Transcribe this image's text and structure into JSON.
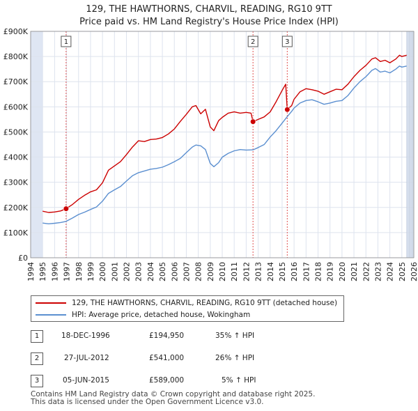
{
  "title": {
    "line1": "129, THE HAWTHORNS, CHARVIL, READING, RG10 9TT",
    "line2": "Price paid vs. HM Land Registry's House Price Index (HPI)"
  },
  "legend": {
    "property_label": "129, THE HAWTHORNS, CHARVIL, READING, RG10 9TT (detached house)",
    "hpi_label": "HPI: Average price, detached house, Wokingham"
  },
  "colors": {
    "property": "#cc0000",
    "hpi": "#5b8fd0",
    "grid": "#dde3ee",
    "shade": "#dfe6f3",
    "marker_line": "#e05050"
  },
  "chart_data": {
    "type": "line",
    "xlim": [
      1994,
      2026
    ],
    "ylim": [
      0,
      900000
    ],
    "x_ticks": [
      1994,
      1995,
      1996,
      1997,
      1998,
      1999,
      2000,
      2001,
      2002,
      2003,
      2004,
      2005,
      2006,
      2007,
      2008,
      2009,
      2010,
      2011,
      2012,
      2013,
      2014,
      2015,
      2016,
      2017,
      2018,
      2019,
      2020,
      2021,
      2022,
      2023,
      2024,
      2025,
      2026
    ],
    "y_ticks": [
      {
        "value": 0,
        "label": "£0"
      },
      {
        "value": 100000,
        "label": "£100K"
      },
      {
        "value": 200000,
        "label": "£200K"
      },
      {
        "value": 300000,
        "label": "£300K"
      },
      {
        "value": 400000,
        "label": "£400K"
      },
      {
        "value": 500000,
        "label": "£500K"
      },
      {
        "value": 600000,
        "label": "£600K"
      },
      {
        "value": 700000,
        "label": "£700K"
      },
      {
        "value": 800000,
        "label": "£800K"
      },
      {
        "value": 900000,
        "label": "£900K"
      }
    ],
    "data_start_x": 1995,
    "data_end_x": 2025.4,
    "series": [
      {
        "name": "129, THE HAWTHORNS, CHARVIL, READING, RG10 9TT (detached house)",
        "color": "#cc0000",
        "points": [
          [
            1995.0,
            185000
          ],
          [
            1995.5,
            180000
          ],
          [
            1996.0,
            182000
          ],
          [
            1996.5,
            186000
          ],
          [
            1996.96,
            194950
          ],
          [
            1997.5,
            212000
          ],
          [
            1998.0,
            232000
          ],
          [
            1998.5,
            248000
          ],
          [
            1999.0,
            262000
          ],
          [
            1999.5,
            270000
          ],
          [
            2000.0,
            298000
          ],
          [
            2000.5,
            348000
          ],
          [
            2001.0,
            365000
          ],
          [
            2001.5,
            382000
          ],
          [
            2002.0,
            410000
          ],
          [
            2002.5,
            440000
          ],
          [
            2003.0,
            465000
          ],
          [
            2003.5,
            462000
          ],
          [
            2004.0,
            470000
          ],
          [
            2004.5,
            472000
          ],
          [
            2005.0,
            478000
          ],
          [
            2005.5,
            492000
          ],
          [
            2006.0,
            512000
          ],
          [
            2006.5,
            542000
          ],
          [
            2007.0,
            570000
          ],
          [
            2007.5,
            600000
          ],
          [
            2007.8,
            605000
          ],
          [
            2008.2,
            572000
          ],
          [
            2008.6,
            590000
          ],
          [
            2009.0,
            520000
          ],
          [
            2009.3,
            505000
          ],
          [
            2009.7,
            545000
          ],
          [
            2010.0,
            558000
          ],
          [
            2010.5,
            575000
          ],
          [
            2011.0,
            580000
          ],
          [
            2011.5,
            575000
          ],
          [
            2012.0,
            578000
          ],
          [
            2012.4,
            575000
          ],
          [
            2012.57,
            541000
          ],
          [
            2013.0,
            550000
          ],
          [
            2013.5,
            560000
          ],
          [
            2014.0,
            580000
          ],
          [
            2014.5,
            620000
          ],
          [
            2015.0,
            665000
          ],
          [
            2015.3,
            690000
          ],
          [
            2015.43,
            589000
          ],
          [
            2015.8,
            605000
          ],
          [
            2016.0,
            630000
          ],
          [
            2016.5,
            660000
          ],
          [
            2017.0,
            672000
          ],
          [
            2017.5,
            668000
          ],
          [
            2018.0,
            662000
          ],
          [
            2018.5,
            650000
          ],
          [
            2019.0,
            660000
          ],
          [
            2019.5,
            670000
          ],
          [
            2020.0,
            668000
          ],
          [
            2020.5,
            690000
          ],
          [
            2021.0,
            720000
          ],
          [
            2021.5,
            745000
          ],
          [
            2022.0,
            765000
          ],
          [
            2022.5,
            790000
          ],
          [
            2022.8,
            795000
          ],
          [
            2023.2,
            780000
          ],
          [
            2023.6,
            785000
          ],
          [
            2024.0,
            775000
          ],
          [
            2024.5,
            790000
          ],
          [
            2024.8,
            805000
          ],
          [
            2025.0,
            800000
          ],
          [
            2025.4,
            805000
          ]
        ]
      },
      {
        "name": "HPI: Average price, detached house, Wokingham",
        "color": "#5b8fd0",
        "points": [
          [
            1995.0,
            138000
          ],
          [
            1995.5,
            135000
          ],
          [
            1996.0,
            137000
          ],
          [
            1996.5,
            140000
          ],
          [
            1996.96,
            144500
          ],
          [
            1997.5,
            158000
          ],
          [
            1998.0,
            172000
          ],
          [
            1998.5,
            181000
          ],
          [
            1999.0,
            192000
          ],
          [
            1999.5,
            202000
          ],
          [
            2000.0,
            225000
          ],
          [
            2000.5,
            256000
          ],
          [
            2001.0,
            270000
          ],
          [
            2001.5,
            283000
          ],
          [
            2002.0,
            305000
          ],
          [
            2002.5,
            326000
          ],
          [
            2003.0,
            338000
          ],
          [
            2003.5,
            345000
          ],
          [
            2004.0,
            352000
          ],
          [
            2004.5,
            355000
          ],
          [
            2005.0,
            360000
          ],
          [
            2005.5,
            370000
          ],
          [
            2006.0,
            382000
          ],
          [
            2006.5,
            395000
          ],
          [
            2007.0,
            418000
          ],
          [
            2007.5,
            440000
          ],
          [
            2007.8,
            448000
          ],
          [
            2008.2,
            445000
          ],
          [
            2008.6,
            430000
          ],
          [
            2009.0,
            375000
          ],
          [
            2009.3,
            362000
          ],
          [
            2009.7,
            378000
          ],
          [
            2010.0,
            400000
          ],
          [
            2010.5,
            415000
          ],
          [
            2011.0,
            425000
          ],
          [
            2011.5,
            430000
          ],
          [
            2012.0,
            428000
          ],
          [
            2012.57,
            429000
          ],
          [
            2013.0,
            438000
          ],
          [
            2013.5,
            450000
          ],
          [
            2014.0,
            480000
          ],
          [
            2014.5,
            505000
          ],
          [
            2015.0,
            535000
          ],
          [
            2015.43,
            561000
          ],
          [
            2015.8,
            582000
          ],
          [
            2016.0,
            595000
          ],
          [
            2016.5,
            615000
          ],
          [
            2017.0,
            625000
          ],
          [
            2017.5,
            628000
          ],
          [
            2018.0,
            620000
          ],
          [
            2018.5,
            610000
          ],
          [
            2019.0,
            615000
          ],
          [
            2019.5,
            622000
          ],
          [
            2020.0,
            625000
          ],
          [
            2020.5,
            645000
          ],
          [
            2021.0,
            675000
          ],
          [
            2021.5,
            700000
          ],
          [
            2022.0,
            720000
          ],
          [
            2022.5,
            745000
          ],
          [
            2022.8,
            752000
          ],
          [
            2023.2,
            738000
          ],
          [
            2023.6,
            742000
          ],
          [
            2024.0,
            735000
          ],
          [
            2024.5,
            750000
          ],
          [
            2024.8,
            762000
          ],
          [
            2025.0,
            758000
          ],
          [
            2025.4,
            762000
          ]
        ]
      }
    ],
    "sales": [
      {
        "num": "1",
        "x": 1996.96,
        "price": 194950
      },
      {
        "num": "2",
        "x": 2012.57,
        "price": 541000
      },
      {
        "num": "3",
        "x": 2015.43,
        "price": 589000
      }
    ]
  },
  "transactions": [
    {
      "num": "1",
      "date": "18-DEC-1996",
      "price": "£194,950",
      "hpi": "35% ↑ HPI"
    },
    {
      "num": "2",
      "date": "27-JUL-2012",
      "price": "£541,000",
      "hpi": "26% ↑ HPI"
    },
    {
      "num": "3",
      "date": "05-JUN-2015",
      "price": "£589,000",
      "hpi": "5% ↑ HPI"
    }
  ],
  "footer": {
    "line1": "Contains HM Land Registry data © Crown copyright and database right 2025.",
    "line2": "This data is licensed under the Open Government Licence v3.0."
  }
}
